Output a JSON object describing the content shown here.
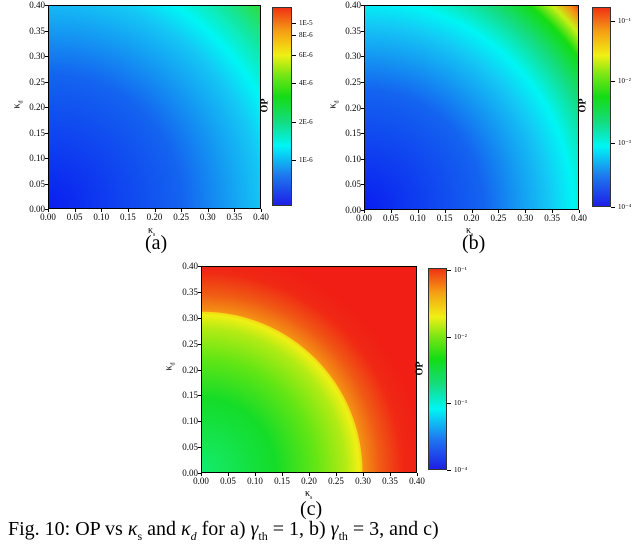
{
  "figure": {
    "caption": "Fig. 10: OP vs κs and κd for a) γth = 1, b) γth = 3, and c)",
    "caption_parts": {
      "prefix": "Fig. 10: OP vs ",
      "k_s": "κ",
      "k_s_sub": "s",
      "and": " and ",
      "k_d": "κ",
      "k_d_sub": "d",
      "for_a": " for a) ",
      "gamma": "γ",
      "gamma_sub": "th",
      "eq1": " = 1, b) ",
      "eq3": " = 3, and c)"
    }
  },
  "panels": [
    {
      "label": "(a)",
      "xlabel": "κs",
      "ylabel": "κd",
      "colorbar_label": "OP",
      "xticks": [
        "0.00",
        "0.05",
        "0.10",
        "0.15",
        "0.20",
        "0.25",
        "0.30",
        "0.35",
        "0.40"
      ],
      "yticks": [
        "0.00",
        "0.05",
        "0.10",
        "0.15",
        "0.20",
        "0.25",
        "0.30",
        "0.35",
        "0.40"
      ],
      "cbticks": [
        "1E-6",
        "2E-6",
        "4E-6",
        "6E-6",
        "8E-6",
        "1E-5"
      ]
    },
    {
      "label": "(b)",
      "xlabel": "κs",
      "ylabel": "κd",
      "colorbar_label": "OP",
      "xticks": [
        "0.00",
        "0.05",
        "0.10",
        "0.15",
        "0.20",
        "0.25",
        "0.30",
        "0.35",
        "0.40"
      ],
      "yticks": [
        "0.00",
        "0.05",
        "0.10",
        "0.15",
        "0.20",
        "0.25",
        "0.30",
        "0.35",
        "0.40"
      ],
      "cbticks": [
        "10⁻⁴",
        "10⁻³",
        "10⁻²",
        "10⁻¹"
      ]
    },
    {
      "label": "(c)",
      "xlabel": "κs",
      "ylabel": "κd",
      "colorbar_label": "OP",
      "xticks": [
        "0.00",
        "0.05",
        "0.10",
        "0.15",
        "0.20",
        "0.25",
        "0.30",
        "0.35",
        "0.40"
      ],
      "yticks": [
        "0.00",
        "0.05",
        "0.10",
        "0.15",
        "0.20",
        "0.25",
        "0.30",
        "0.35",
        "0.40"
      ],
      "cbticks": [
        "10⁻⁴",
        "10⁻³",
        "10⁻²",
        "10⁻¹"
      ]
    }
  ],
  "chart_data": [
    {
      "type": "heatmap",
      "title": "(a) γth = 1",
      "xlabel": "κs",
      "ylabel": "κd",
      "colorbar_label": "OP",
      "xlim": [
        0.0,
        0.4
      ],
      "ylim": [
        0.0,
        0.4
      ],
      "colorbar_ticks": [
        "1E-6",
        "2E-6",
        "4E-6",
        "6E-6",
        "8E-6",
        "1E-5"
      ],
      "colormap": "rainbow (blue→cyan→green→yellow→red)",
      "description": "OP increases radially from origin; ~1E-6 (blue) near (0,0), ~2E-6 (cyan) along arc through (0.40,0.05)-(0.20,0.40), ~4E-6 (green) at (0.40,0.40)",
      "samples": [
        {
          "ks": 0.0,
          "kd": 0.0,
          "op": "8E-7"
        },
        {
          "ks": 0.2,
          "kd": 0.2,
          "op": "1.3E-6"
        },
        {
          "ks": 0.4,
          "kd": 0.0,
          "op": "1.8E-6"
        },
        {
          "ks": 0.0,
          "kd": 0.4,
          "op": "1.8E-6"
        },
        {
          "ks": 0.4,
          "kd": 0.4,
          "op": "4E-6"
        }
      ]
    },
    {
      "type": "heatmap",
      "title": "(b) γth = 3",
      "xlabel": "κs",
      "ylabel": "κd",
      "colorbar_label": "OP",
      "xlim": [
        0.0,
        0.4
      ],
      "ylim": [
        0.0,
        0.4
      ],
      "colorbar_ticks": [
        "10^-4",
        "10^-3",
        "10^-2",
        "10^-1"
      ],
      "colorbar_scale": "log",
      "colormap": "rainbow (blue→cyan→green→yellow→red)",
      "description": "OP increases radially; ~1E-4 (blue) near origin, ~1E-3 (cyan) arc at radius ≈0.36, ~1E-2 (green) near corner, ~1E-1+ (red) at (0.40,0.40)",
      "samples": [
        {
          "ks": 0.0,
          "kd": 0.0,
          "op": "1E-4"
        },
        {
          "ks": 0.2,
          "kd": 0.2,
          "op": "5E-4"
        },
        {
          "ks": 0.36,
          "kd": 0.0,
          "op": "1E-3"
        },
        {
          "ks": 0.3,
          "kd": 0.3,
          "op": "5E-3"
        },
        {
          "ks": 0.4,
          "kd": 0.4,
          "op": "3E-1"
        }
      ]
    },
    {
      "type": "heatmap",
      "title": "(c)",
      "xlabel": "κs",
      "ylabel": "κd",
      "colorbar_label": "OP",
      "xlim": [
        0.0,
        0.4
      ],
      "ylim": [
        0.0,
        0.4
      ],
      "colorbar_ticks": [
        "10^-4",
        "10^-3",
        "10^-2",
        "10^-1"
      ],
      "colorbar_scale": "log",
      "colormap": "rainbow (blue→cyan→green→yellow→red)",
      "description": "Green (~1E-2) region inside quarter circle radius ≈0.30, sharp yellow boundary (~1E-1) at radius 0.30, red (~1) outside",
      "samples": [
        {
          "ks": 0.0,
          "kd": 0.0,
          "op": "8E-3"
        },
        {
          "ks": 0.15,
          "kd": 0.15,
          "op": "1E-2"
        },
        {
          "ks": 0.3,
          "kd": 0.0,
          "op": "1E-1"
        },
        {
          "ks": 0.0,
          "kd": 0.3,
          "op": "1E-1"
        },
        {
          "ks": 0.4,
          "kd": 0.4,
          "op": "1"
        }
      ]
    }
  ]
}
